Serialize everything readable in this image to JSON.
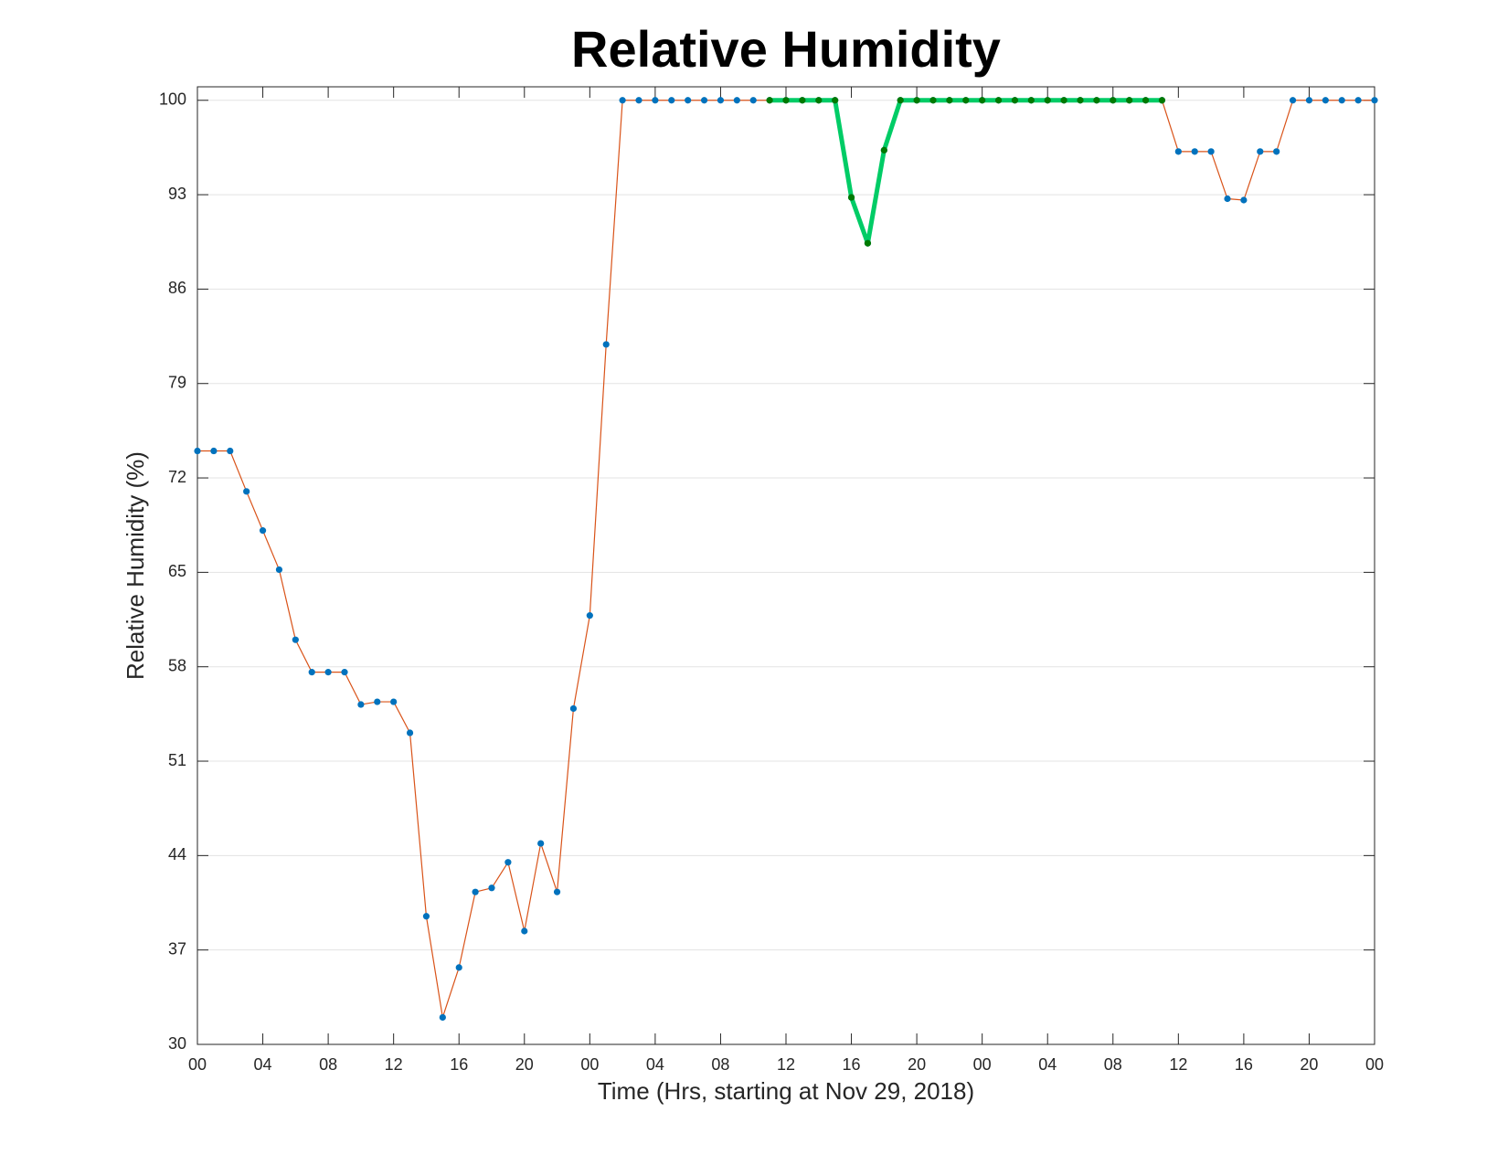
{
  "chart_data": {
    "type": "line",
    "title": "Relative Humidity",
    "x_label": "Time (Hrs, starting at Nov 29, 2018)",
    "y_label": "Relative Humidity (%)",
    "x": [
      0,
      1,
      2,
      3,
      4,
      5,
      6,
      7,
      8,
      9,
      10,
      11,
      12,
      13,
      14,
      15,
      16,
      17,
      18,
      19,
      20,
      21,
      22,
      23,
      24,
      25,
      26,
      27,
      28,
      29,
      30,
      31,
      32,
      33,
      34,
      35,
      36,
      37,
      38,
      39,
      40,
      41,
      42,
      43,
      44,
      45,
      46,
      47,
      48,
      49,
      50,
      51,
      52,
      53,
      54,
      55,
      56,
      57,
      58,
      59,
      60,
      61,
      62,
      63,
      64,
      65,
      66,
      67,
      68,
      69,
      70,
      71,
      72
    ],
    "series": [
      {
        "color": "#d95319",
        "marker_color": "#0072bd",
        "values": [
          74,
          74,
          74,
          71,
          68.1,
          65.2,
          60,
          57.6,
          57.6,
          57.6,
          55.2,
          55.4,
          55.4,
          53.1,
          39.5,
          32,
          35.7,
          41.3,
          41.6,
          43.5,
          38.4,
          44.9,
          41.3,
          54.9,
          61.8,
          81.9,
          100,
          100,
          100,
          100,
          100,
          100,
          100,
          100,
          100,
          100,
          100,
          100,
          100,
          100,
          92.8,
          89.4,
          96.3,
          100,
          100,
          100,
          100,
          100,
          100,
          100,
          100,
          100,
          100,
          100,
          100,
          100,
          100,
          100,
          100,
          100,
          96.2,
          96.2,
          96.2,
          92.7,
          92.6,
          96.2,
          96.2,
          100,
          100,
          100,
          100,
          100,
          100
        ]
      },
      {
        "color": "#00cc66",
        "marker_color": "#007a00",
        "values": [
          null,
          null,
          null,
          null,
          null,
          null,
          null,
          null,
          null,
          null,
          null,
          null,
          null,
          null,
          null,
          null,
          null,
          null,
          null,
          null,
          null,
          null,
          null,
          null,
          null,
          null,
          null,
          null,
          null,
          null,
          null,
          null,
          null,
          null,
          null,
          100,
          100,
          100,
          100,
          100,
          92.8,
          89.4,
          96.3,
          100,
          100,
          100,
          100,
          100,
          100,
          100,
          100,
          100,
          100,
          100,
          100,
          100,
          100,
          100,
          100,
          100,
          null,
          null,
          null,
          null,
          null,
          null,
          null,
          null,
          null,
          null,
          null,
          null,
          null
        ]
      }
    ],
    "xlim": [
      0,
      72
    ],
    "xticks": [
      {
        "value": 0,
        "label": "00"
      },
      {
        "value": 4,
        "label": "04"
      },
      {
        "value": 8,
        "label": "08"
      },
      {
        "value": 12,
        "label": "12"
      },
      {
        "value": 16,
        "label": "16"
      },
      {
        "value": 20,
        "label": "20"
      },
      {
        "value": 24,
        "label": "00"
      },
      {
        "value": 28,
        "label": "04"
      },
      {
        "value": 32,
        "label": "08"
      },
      {
        "value": 36,
        "label": "12"
      },
      {
        "value": 40,
        "label": "16"
      },
      {
        "value": 44,
        "label": "20"
      },
      {
        "value": 48,
        "label": "00"
      },
      {
        "value": 52,
        "label": "04"
      },
      {
        "value": 56,
        "label": "08"
      },
      {
        "value": 60,
        "label": "12"
      },
      {
        "value": 64,
        "label": "16"
      },
      {
        "value": 68,
        "label": "20"
      },
      {
        "value": 72,
        "label": "00"
      }
    ],
    "ylim": [
      30,
      101
    ],
    "yticks": [
      30,
      37,
      44,
      51,
      58,
      65,
      72,
      79,
      86,
      93,
      100
    ],
    "grid": "y"
  }
}
